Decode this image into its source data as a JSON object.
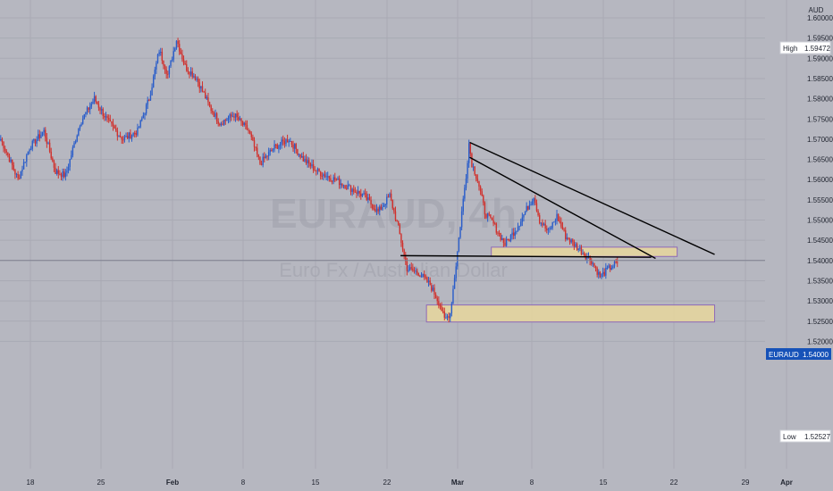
{
  "chart_data": {
    "type": "candlestick",
    "symbol_watermark": "EURAUD, 4h",
    "watermark_subtitle": "Euro Fx / Australian Dollar",
    "currency_label": "AUD",
    "price_axis": {
      "ylim": [
        1.5185,
        1.6025
      ],
      "ticks": [
        "1.60000",
        "1.59500",
        "1.59000",
        "1.58500",
        "1.58000",
        "1.57500",
        "1.57000",
        "1.56500",
        "1.56000",
        "1.55500",
        "1.55000",
        "1.54500",
        "1.54000",
        "1.53500",
        "1.53000",
        "1.52500",
        "1.52000"
      ]
    },
    "time_axis": {
      "labels": [
        "18",
        "25",
        "Feb",
        "8",
        "15",
        "22",
        "Mar",
        "8",
        "15",
        "22",
        "29",
        "Apr"
      ]
    },
    "markers": {
      "high": {
        "label": "High",
        "value": "1.59472"
      },
      "low": {
        "label": "Low",
        "value": "1.52527"
      },
      "current": {
        "label": "EURAUD",
        "value": "1.54000"
      }
    },
    "colors": {
      "up": "#2a5dc9",
      "down": "#d0312d",
      "zone_fill": "#e7d79c",
      "zone_border": "#8e69b8",
      "line": "#000000"
    },
    "anchors": [
      [
        0,
        1.57
      ],
      [
        5,
        1.566
      ],
      [
        12,
        1.56
      ],
      [
        20,
        1.568
      ],
      [
        30,
        1.572
      ],
      [
        38,
        1.562
      ],
      [
        45,
        1.561
      ],
      [
        55,
        1.574
      ],
      [
        65,
        1.58
      ],
      [
        75,
        1.574
      ],
      [
        85,
        1.57
      ],
      [
        95,
        1.572
      ],
      [
        103,
        1.58
      ],
      [
        110,
        1.592
      ],
      [
        116,
        1.586
      ],
      [
        122,
        1.5947
      ],
      [
        128,
        1.588
      ],
      [
        136,
        1.585
      ],
      [
        145,
        1.578
      ],
      [
        152,
        1.574
      ],
      [
        162,
        1.576
      ],
      [
        172,
        1.572
      ],
      [
        180,
        1.564
      ],
      [
        190,
        1.568
      ],
      [
        200,
        1.57
      ],
      [
        210,
        1.565
      ],
      [
        220,
        1.562
      ],
      [
        232,
        1.56
      ],
      [
        242,
        1.558
      ],
      [
        252,
        1.556
      ],
      [
        262,
        1.552
      ],
      [
        270,
        1.556
      ],
      [
        276,
        1.548
      ],
      [
        282,
        1.538
      ],
      [
        290,
        1.537
      ],
      [
        298,
        1.534
      ],
      [
        305,
        1.529
      ],
      [
        308,
        1.5253
      ],
      [
        312,
        1.527
      ],
      [
        316,
        1.539
      ],
      [
        320,
        1.552
      ],
      [
        323,
        1.561
      ],
      [
        325,
        1.569
      ],
      [
        327,
        1.564
      ],
      [
        331,
        1.56
      ],
      [
        336,
        1.552
      ],
      [
        342,
        1.549
      ],
      [
        350,
        1.544
      ],
      [
        358,
        1.548
      ],
      [
        364,
        1.552
      ],
      [
        370,
        1.556
      ],
      [
        374,
        1.55
      ],
      [
        380,
        1.547
      ],
      [
        386,
        1.551
      ],
      [
        392,
        1.546
      ],
      [
        398,
        1.544
      ],
      [
        404,
        1.542
      ],
      [
        410,
        1.54
      ],
      [
        416,
        1.536
      ],
      [
        422,
        1.538
      ],
      [
        428,
        1.5395
      ]
    ],
    "zones": [
      {
        "x": [
          296,
          496
        ],
        "y": [
          1.5248,
          1.529
        ]
      },
      {
        "x": [
          341,
          470
        ],
        "y": [
          1.541,
          1.5433
        ]
      }
    ],
    "trendlines": [
      {
        "x1": 278,
        "y1": 1.5412,
        "x2": 452,
        "y2": 1.5408
      },
      {
        "x1": 326,
        "y1": 1.5655,
        "x2": 455,
        "y2": 1.5405
      },
      {
        "x1": 326,
        "y1": 1.5692,
        "x2": 496,
        "y2": 1.5415
      }
    ]
  }
}
